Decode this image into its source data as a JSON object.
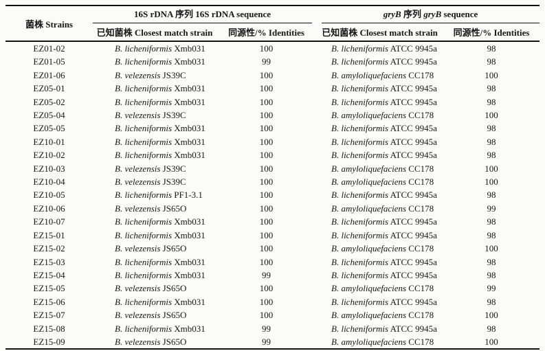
{
  "table": {
    "strain_header": "菌株 Strains",
    "groups": [
      {
        "title_segments": [
          {
            "text": "16S rDNA 序列 16S rDNA sequence",
            "italic": false
          }
        ],
        "match_header": "已知菌株 Closest match strain",
        "identity_header": "同源性/% Identities"
      },
      {
        "title_segments": [
          {
            "text": "gryB",
            "italic": true
          },
          {
            "text": " 序列 ",
            "italic": false
          },
          {
            "text": "gryB",
            "italic": true
          },
          {
            "text": " sequence",
            "italic": false
          }
        ],
        "match_header": "已知菌株 Closest match strain",
        "identity_header": "同源性/% Identities"
      }
    ],
    "rows": [
      {
        "strain": "EZ01-02",
        "s16_species": "B. licheniformis",
        "s16_strain": "Xmb031",
        "s16_identity": "100",
        "gryb_species": "B. licheniformis",
        "gryb_strain": "ATCC 9945a",
        "gryb_identity": "98"
      },
      {
        "strain": "EZ01-05",
        "s16_species": "B. licheniformis",
        "s16_strain": "Xmb031",
        "s16_identity": "99",
        "gryb_species": "B. licheniformis",
        "gryb_strain": "ATCC 9945a",
        "gryb_identity": "98"
      },
      {
        "strain": "EZ01-06",
        "s16_species": "B. velezensis",
        "s16_strain": "JS39C",
        "s16_identity": "100",
        "gryb_species": "B. amyloliquefaciens",
        "gryb_strain": "CC178",
        "gryb_identity": "100"
      },
      {
        "strain": "EZ05-01",
        "s16_species": "B. licheniformis",
        "s16_strain": "Xmb031",
        "s16_identity": "100",
        "gryb_species": "B. licheniformis",
        "gryb_strain": "ATCC 9945a",
        "gryb_identity": "98"
      },
      {
        "strain": "EZ05-02",
        "s16_species": "B. licheniformis",
        "s16_strain": "Xmb031",
        "s16_identity": "100",
        "gryb_species": "B. licheniformis",
        "gryb_strain": "ATCC 9945a",
        "gryb_identity": "98"
      },
      {
        "strain": "EZ05-04",
        "s16_species": "B. velezensis",
        "s16_strain": "JS39C",
        "s16_identity": "100",
        "gryb_species": "B. amyloliquefaciens",
        "gryb_strain": "CC178",
        "gryb_identity": "100"
      },
      {
        "strain": "EZ05-05",
        "s16_species": "B. licheniformis",
        "s16_strain": "Xmb031",
        "s16_identity": "100",
        "gryb_species": "B. licheniformis",
        "gryb_strain": "ATCC 9945a",
        "gryb_identity": "98"
      },
      {
        "strain": "EZ10-01",
        "s16_species": "B. licheniformis",
        "s16_strain": "Xmb031",
        "s16_identity": "100",
        "gryb_species": "B. licheniformis",
        "gryb_strain": "ATCC 9945a",
        "gryb_identity": "98"
      },
      {
        "strain": "EZ10-02",
        "s16_species": "B. licheniformis",
        "s16_strain": "Xmb031",
        "s16_identity": "100",
        "gryb_species": "B. licheniformis",
        "gryb_strain": "ATCC 9945a",
        "gryb_identity": "98"
      },
      {
        "strain": "EZ10-03",
        "s16_species": "B. velezensis",
        "s16_strain": "JS39C",
        "s16_identity": "100",
        "gryb_species": "B. amyloliquefaciens",
        "gryb_strain": "CC178",
        "gryb_identity": "100"
      },
      {
        "strain": "EZ10-04",
        "s16_species": "B. velezensis",
        "s16_strain": "JS39C",
        "s16_identity": "100",
        "gryb_species": "B. amyloliquefaciens",
        "gryb_strain": "CC178",
        "gryb_identity": "100"
      },
      {
        "strain": "EZ10-05",
        "s16_species": "B. licheniformis",
        "s16_strain": "PF1-3.1",
        "s16_identity": "100",
        "gryb_species": "B. licheniformis",
        "gryb_strain": "ATCC 9945a",
        "gryb_identity": "98"
      },
      {
        "strain": "EZ10-06",
        "s16_species": "B. velezensis",
        "s16_strain": "JS65O",
        "s16_identity": "100",
        "gryb_species": "B. amyloliquefaciens",
        "gryb_strain": "CC178",
        "gryb_identity": "99"
      },
      {
        "strain": "EZ10-07",
        "s16_species": "B. licheniformis",
        "s16_strain": "Xmb031",
        "s16_identity": "100",
        "gryb_species": "B. licheniformis",
        "gryb_strain": "ATCC 9945a",
        "gryb_identity": "98"
      },
      {
        "strain": "EZ15-01",
        "s16_species": "B. licheniformis",
        "s16_strain": "Xmb031",
        "s16_identity": "100",
        "gryb_species": "B. licheniformis",
        "gryb_strain": "ATCC 9945a",
        "gryb_identity": "98"
      },
      {
        "strain": "EZ15-02",
        "s16_species": "B. velezensis",
        "s16_strain": "JS65O",
        "s16_identity": "100",
        "gryb_species": "B. amyloliquefaciens",
        "gryb_strain": "CC178",
        "gryb_identity": "100"
      },
      {
        "strain": "EZ15-03",
        "s16_species": "B. licheniformis",
        "s16_strain": "Xmb031",
        "s16_identity": "100",
        "gryb_species": "B. licheniformis",
        "gryb_strain": "ATCC 9945a",
        "gryb_identity": "98"
      },
      {
        "strain": "EZ15-04",
        "s16_species": "B. licheniformis",
        "s16_strain": "Xmb031",
        "s16_identity": "99",
        "gryb_species": "B. licheniformis",
        "gryb_strain": "ATCC 9945a",
        "gryb_identity": "98"
      },
      {
        "strain": "EZ15-05",
        "s16_species": "B. velezensis",
        "s16_strain": "JS65O",
        "s16_identity": "100",
        "gryb_species": "B. amyloliquefaciens",
        "gryb_strain": "CC178",
        "gryb_identity": "99"
      },
      {
        "strain": "EZ15-06",
        "s16_species": "B. licheniformis",
        "s16_strain": "Xmb031",
        "s16_identity": "100",
        "gryb_species": "B. licheniformis",
        "gryb_strain": "ATCC 9945a",
        "gryb_identity": "98"
      },
      {
        "strain": "EZ15-07",
        "s16_species": "B. velezensis",
        "s16_strain": "JS65O",
        "s16_identity": "100",
        "gryb_species": "B. amyloliquefaciens",
        "gryb_strain": "CC178",
        "gryb_identity": "100"
      },
      {
        "strain": "EZ15-08",
        "s16_species": "B. licheniformis",
        "s16_strain": "Xmb031",
        "s16_identity": "99",
        "gryb_species": "B. licheniformis",
        "gryb_strain": "ATCC 9945a",
        "gryb_identity": "98"
      },
      {
        "strain": "EZ15-09",
        "s16_species": "B. velezensis",
        "s16_strain": "JS65O",
        "s16_identity": "99",
        "gryb_species": "B. amyloliquefaciens",
        "gryb_strain": "CC178",
        "gryb_identity": "100"
      }
    ]
  }
}
